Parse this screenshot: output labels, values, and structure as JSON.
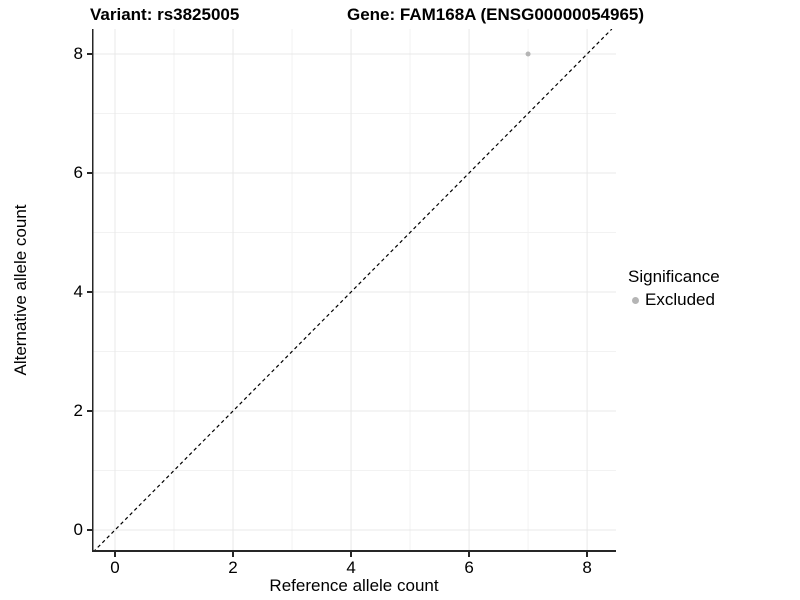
{
  "titles": {
    "variant": "Variant: rs3825005",
    "gene": "Gene: FAM168A (ENSG00000054965)"
  },
  "axes": {
    "x_label": "Reference allele count",
    "y_label": "Alternative allele count"
  },
  "legend": {
    "title": "Significance",
    "items": [
      {
        "label": "Excluded",
        "color": "#b5b5b5"
      }
    ]
  },
  "chart_data": {
    "type": "scatter",
    "title": "Variant: rs3825005   Gene: FAM168A (ENSG00000054965)",
    "xlabel": "Reference allele count",
    "ylabel": "Alternative allele count",
    "xlim": [
      -0.39,
      8.49
    ],
    "ylim": [
      -0.37,
      8.42
    ],
    "x_ticks": [
      0,
      2,
      4,
      6,
      8
    ],
    "y_ticks": [
      0,
      2,
      4,
      6,
      8
    ],
    "x_minor_ticks": [
      1,
      3,
      5,
      7
    ],
    "y_minor_ticks": [
      1,
      3,
      5,
      7
    ],
    "grid": "major-and-minor",
    "legend_position": "right",
    "series": [
      {
        "name": "Excluded",
        "color": "#b5b5b5",
        "point_radius": 2.5,
        "points": [
          {
            "x": 7,
            "y": 8
          }
        ]
      }
    ],
    "reference_line": {
      "type": "identity",
      "slope": 1,
      "intercept": 0,
      "style": "dashed",
      "color": "#000000"
    }
  },
  "colors": {
    "background": "#ffffff",
    "axis_line": "#262626",
    "grid_major": "#e8e8e8",
    "grid_minor": "#f2f2f2",
    "text": "#000000"
  }
}
